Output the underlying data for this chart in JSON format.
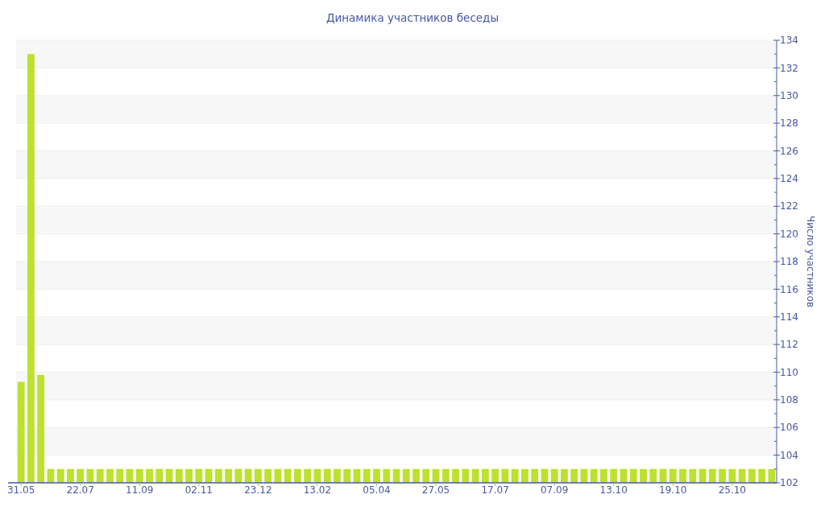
{
  "chart_data": {
    "type": "bar",
    "title": "Динамика участников беседы",
    "ylabel": "Число участников",
    "categories": [
      "31.05",
      null,
      null,
      null,
      null,
      null,
      "22.07",
      null,
      null,
      null,
      null,
      null,
      "11.09",
      null,
      null,
      null,
      null,
      null,
      "02.11",
      null,
      null,
      null,
      null,
      null,
      "23.12",
      null,
      null,
      null,
      null,
      null,
      "13.02",
      null,
      null,
      null,
      null,
      null,
      "05.04",
      null,
      null,
      null,
      null,
      null,
      "27.05",
      null,
      null,
      null,
      null,
      null,
      "17.07",
      null,
      null,
      null,
      null,
      null,
      "07.09",
      null,
      null,
      null,
      null,
      null,
      "13.10",
      null,
      null,
      null,
      null,
      null,
      "19.10",
      null,
      null,
      null,
      null,
      null,
      "25.10",
      null,
      null,
      null,
      null
    ],
    "values": [
      109.3,
      133,
      109.8,
      103,
      103,
      103,
      103,
      103,
      103,
      103,
      103,
      103,
      103,
      103,
      103,
      103,
      103,
      103,
      103,
      103,
      103,
      103,
      103,
      103,
      103,
      103,
      103,
      103,
      103,
      103,
      103,
      103,
      103,
      103,
      103,
      103,
      103,
      103,
      103,
      103,
      103,
      103,
      103,
      103,
      103,
      103,
      103,
      103,
      103,
      103,
      103,
      103,
      103,
      103,
      103,
      103,
      103,
      103,
      103,
      103,
      103,
      103,
      103,
      103,
      103,
      103,
      103,
      103,
      103,
      103,
      103,
      103,
      103,
      103,
      103,
      103,
      103
    ],
    "color": "#bde12f",
    "ylim": [
      102,
      134
    ],
    "yticks": [
      102,
      {
        "value": 103,
        "label": null
      },
      104,
      {
        "value": 105,
        "label": null
      },
      106,
      {
        "value": 107,
        "label": null
      },
      108,
      {
        "value": 109,
        "label": null
      },
      110,
      {
        "value": 111,
        "label": null
      },
      112,
      {
        "value": 113,
        "label": null
      },
      114,
      {
        "value": 115,
        "label": null
      },
      116,
      {
        "value": 117,
        "label": null
      },
      118,
      {
        "value": 119,
        "label": null
      },
      120,
      {
        "value": 121,
        "label": null
      },
      122,
      {
        "value": 123,
        "label": null
      },
      124,
      {
        "value": 125,
        "label": null
      },
      126,
      {
        "value": 127,
        "label": null
      },
      128,
      {
        "value": 129,
        "label": null
      },
      130,
      {
        "value": 131,
        "label": null
      },
      132,
      {
        "value": 133,
        "label": null
      },
      134
    ],
    "grid": "y"
  }
}
